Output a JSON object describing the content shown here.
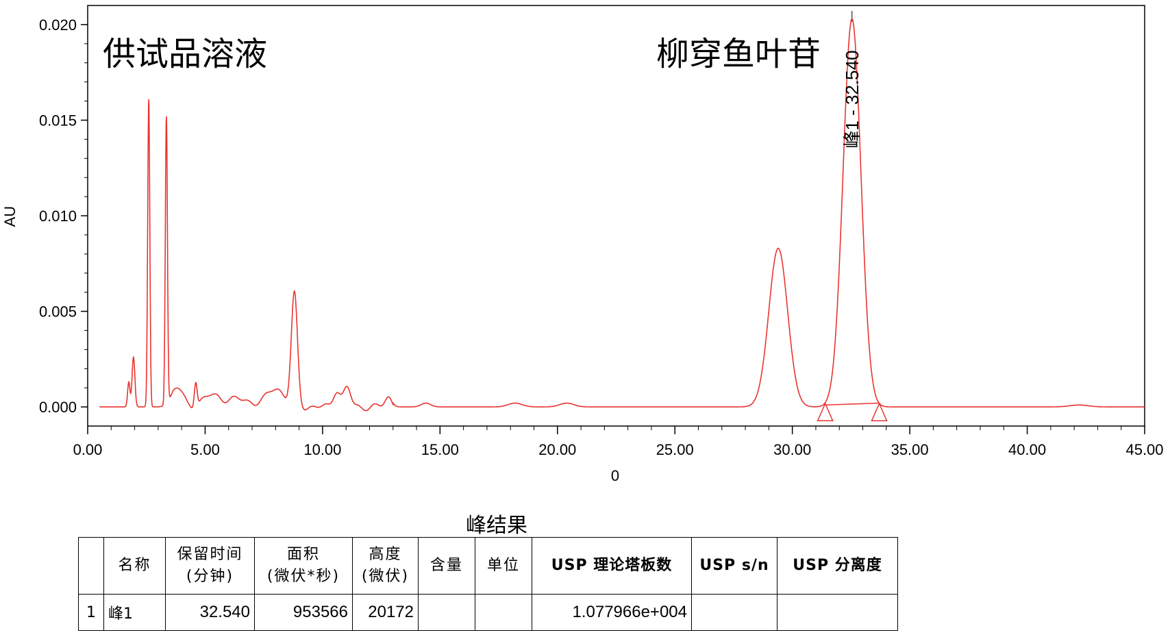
{
  "chart_data": {
    "type": "line",
    "title": "供试品溶液",
    "annotation": "柳穿鱼叶苷",
    "xlabel": "0",
    "ylabel": "AU",
    "xlim": [
      0,
      45
    ],
    "ylim": [
      -0.001,
      0.021
    ],
    "x_ticks": [
      "0.00",
      "5.00",
      "10.00",
      "15.00",
      "20.00",
      "25.00",
      "30.00",
      "35.00",
      "40.00",
      "45.00"
    ],
    "y_ticks": [
      "0.000",
      "0.005",
      "0.010",
      "0.015",
      "0.020"
    ],
    "x_tick_values": [
      0,
      5,
      10,
      15,
      20,
      25,
      30,
      35,
      40,
      45
    ],
    "y_tick_values": [
      0,
      0.005,
      0.01,
      0.015,
      0.02
    ],
    "line_color": "#e8332f",
    "peaks": [
      {
        "rt": 1.75,
        "height": 0.0013,
        "width": 0.05
      },
      {
        "rt": 1.95,
        "height": 0.0026,
        "width": 0.06
      },
      {
        "rt": 2.6,
        "height": 0.0161,
        "width": 0.045
      },
      {
        "rt": 3.35,
        "height": 0.015,
        "width": 0.045
      },
      {
        "rt": 3.8,
        "height": 0.001,
        "width": 0.25
      },
      {
        "rt": 4.6,
        "height": 0.0013,
        "width": 0.06
      },
      {
        "rt": 5.3,
        "height": 0.0006,
        "width": 0.4
      },
      {
        "rt": 6.5,
        "height": 0.0004,
        "width": 0.5
      },
      {
        "rt": 8.0,
        "height": 0.001,
        "width": 0.35
      },
      {
        "rt": 8.8,
        "height": 0.0058,
        "width": 0.13
      },
      {
        "rt": 10.6,
        "height": 0.0009,
        "width": 0.15
      },
      {
        "rt": 11.05,
        "height": 0.001,
        "width": 0.15
      },
      {
        "rt": 12.8,
        "height": 0.0005,
        "width": 0.15
      },
      {
        "rt": 14.4,
        "height": 0.0002,
        "width": 0.2
      },
      {
        "rt": 18.2,
        "height": 0.0002,
        "width": 0.3
      },
      {
        "rt": 20.4,
        "height": 0.0002,
        "width": 0.3
      },
      {
        "rt": 29.4,
        "height": 0.0083,
        "width": 0.4
      },
      {
        "rt": 32.54,
        "height": 0.0203,
        "width": 0.38
      },
      {
        "rt": 42.2,
        "height": 0.0001,
        "width": 0.4
      }
    ],
    "peak_label": "峰1 - 32.540",
    "baseline_start": 31.4,
    "baseline_end": 33.7
  },
  "table": {
    "title": "峰结果",
    "headers": [
      "",
      "名称",
      "保留时间\n(分钟)",
      "面积\n(微伏*秒)",
      "高度\n(微伏)",
      "含量",
      "单位",
      "USP 理论塔板数",
      "USP s/n",
      "USP 分离度"
    ],
    "rows": [
      [
        "1",
        "峰1",
        "32.540",
        "953566",
        "20172",
        "",
        "",
        "1.077966e+004",
        "",
        ""
      ]
    ]
  }
}
